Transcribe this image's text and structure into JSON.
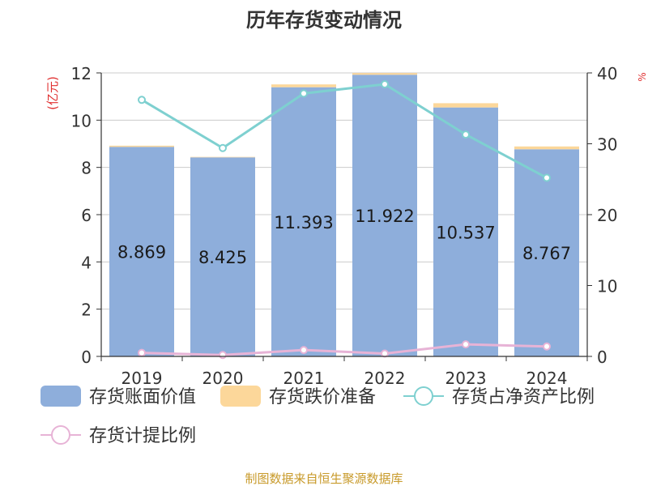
{
  "chart_data": {
    "type": "bar",
    "title": "历年存货变动情况",
    "categories": [
      "2019",
      "2020",
      "2021",
      "2022",
      "2023",
      "2024"
    ],
    "ylabel_left": "(亿元)",
    "ylabel_right": "%",
    "ylim_left": [
      0,
      12
    ],
    "ylim_right": [
      0,
      40
    ],
    "yticks_left": [
      "0",
      "2",
      "4",
      "6",
      "8",
      "10",
      "12"
    ],
    "yticks_right": [
      "0",
      "10",
      "20",
      "30",
      "40"
    ],
    "grid": true,
    "legend_position": "bottom",
    "series": [
      {
        "name": "存货账面价值",
        "type": "bar",
        "axis": "left",
        "values": [
          8.869,
          8.425,
          11.393,
          11.922,
          10.537,
          8.767
        ],
        "labels": [
          "8.869",
          "8.425",
          "11.393",
          "11.922",
          "10.537",
          "8.767"
        ],
        "color": "#8eaedb"
      },
      {
        "name": "存货跌价准备",
        "type": "bar",
        "axis": "left",
        "values": [
          0.05,
          0.02,
          0.12,
          0.07,
          0.18,
          0.12
        ],
        "color": "#fcd79a"
      },
      {
        "name": "存货占净资产比例",
        "type": "line",
        "axis": "right",
        "values": [
          36.2,
          29.4,
          37.1,
          38.4,
          31.3,
          25.2
        ],
        "color": "#7ed0d0"
      },
      {
        "name": "存货计提比例",
        "type": "line",
        "axis": "right",
        "values": [
          0.5,
          0.2,
          0.9,
          0.4,
          1.7,
          1.4
        ],
        "color": "#e7b3d6"
      }
    ],
    "source": "制图数据来自恒生聚源数据库"
  }
}
